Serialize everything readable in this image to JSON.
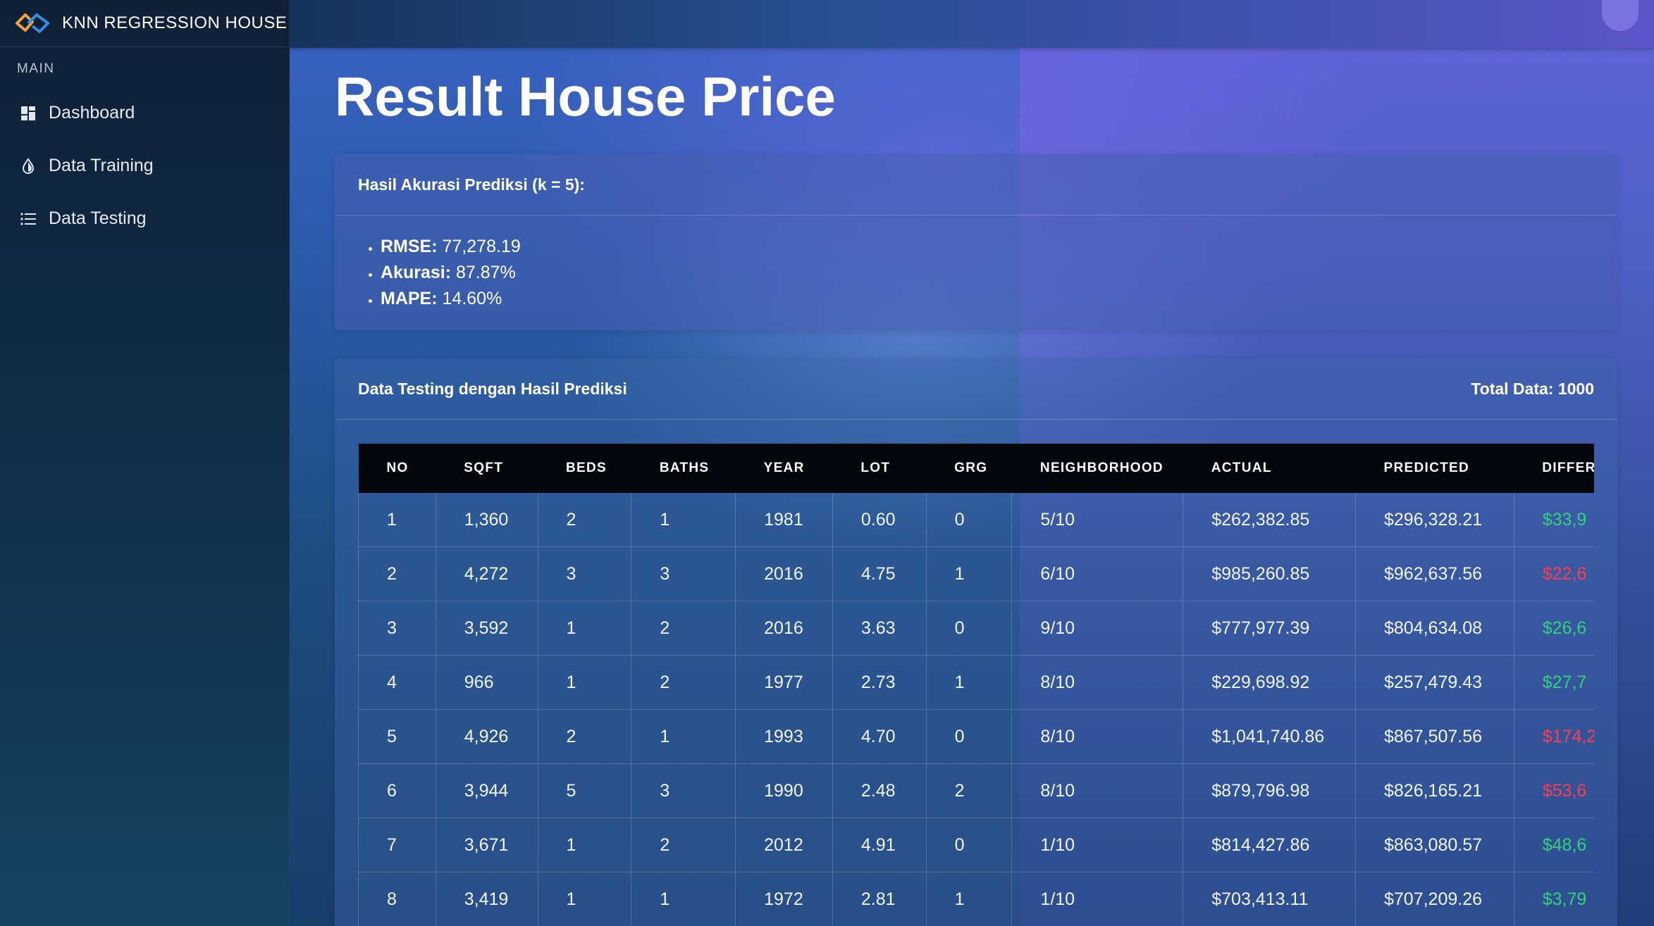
{
  "app": {
    "brand": "KNN REGRESSION HOUSE"
  },
  "sidebar": {
    "section_label": "MAIN",
    "items": [
      {
        "label": "Dashboard",
        "icon": "dashboard-icon"
      },
      {
        "label": "Data Training",
        "icon": "drop-icon"
      },
      {
        "label": "Data Testing",
        "icon": "list-icon"
      }
    ]
  },
  "page": {
    "title": "Result House Price"
  },
  "accuracy": {
    "header": "Hasil Akurasi Prediksi (k = 5):",
    "metrics": [
      {
        "label": "RMSE:",
        "value": "77,278.19"
      },
      {
        "label": "Akurasi:",
        "value": "87.87%"
      },
      {
        "label": "MAPE:",
        "value": "14.60%"
      }
    ]
  },
  "testing": {
    "header": "Data Testing dengan Hasil Prediksi",
    "total": "Total Data: 1000",
    "columns": [
      "NO",
      "SQFT",
      "BEDS",
      "BATHS",
      "YEAR",
      "LOT",
      "GRG",
      "NEIGHBORHOOD",
      "ACTUAL",
      "PREDICTED",
      "DIFFER"
    ],
    "rows": [
      {
        "no": "1",
        "sqft": "1,360",
        "beds": "2",
        "baths": "1",
        "year": "1981",
        "lot": "0.60",
        "grg": "0",
        "nb": "5/10",
        "actual": "$262,382.85",
        "pred": "$296,328.21",
        "diff": "$33,9",
        "diff_sign": "pos"
      },
      {
        "no": "2",
        "sqft": "4,272",
        "beds": "3",
        "baths": "3",
        "year": "2016",
        "lot": "4.75",
        "grg": "1",
        "nb": "6/10",
        "actual": "$985,260.85",
        "pred": "$962,637.56",
        "diff": "$22,6",
        "diff_sign": "neg"
      },
      {
        "no": "3",
        "sqft": "3,592",
        "beds": "1",
        "baths": "2",
        "year": "2016",
        "lot": "3.63",
        "grg": "0",
        "nb": "9/10",
        "actual": "$777,977.39",
        "pred": "$804,634.08",
        "diff": "$26,6",
        "diff_sign": "pos"
      },
      {
        "no": "4",
        "sqft": "966",
        "beds": "1",
        "baths": "2",
        "year": "1977",
        "lot": "2.73",
        "grg": "1",
        "nb": "8/10",
        "actual": "$229,698.92",
        "pred": "$257,479.43",
        "diff": "$27,7",
        "diff_sign": "pos"
      },
      {
        "no": "5",
        "sqft": "4,926",
        "beds": "2",
        "baths": "1",
        "year": "1993",
        "lot": "4.70",
        "grg": "0",
        "nb": "8/10",
        "actual": "$1,041,740.86",
        "pred": "$867,507.56",
        "diff": "$174,2",
        "diff_sign": "neg"
      },
      {
        "no": "6",
        "sqft": "3,944",
        "beds": "5",
        "baths": "3",
        "year": "1990",
        "lot": "2.48",
        "grg": "2",
        "nb": "8/10",
        "actual": "$879,796.98",
        "pred": "$826,165.21",
        "diff": "$53,6",
        "diff_sign": "neg"
      },
      {
        "no": "7",
        "sqft": "3,671",
        "beds": "1",
        "baths": "2",
        "year": "2012",
        "lot": "4.91",
        "grg": "0",
        "nb": "1/10",
        "actual": "$814,427.86",
        "pred": "$863,080.57",
        "diff": "$48,6",
        "diff_sign": "pos"
      },
      {
        "no": "8",
        "sqft": "3,419",
        "beds": "1",
        "baths": "1",
        "year": "1972",
        "lot": "2.81",
        "grg": "1",
        "nb": "1/10",
        "actual": "$703,413.11",
        "pred": "$707,209.26",
        "diff": "$3,79",
        "diff_sign": "pos"
      }
    ]
  },
  "colors": {
    "positive": "#33d17a",
    "negative": "#ff3b4f",
    "accent": "#5b55c9"
  }
}
